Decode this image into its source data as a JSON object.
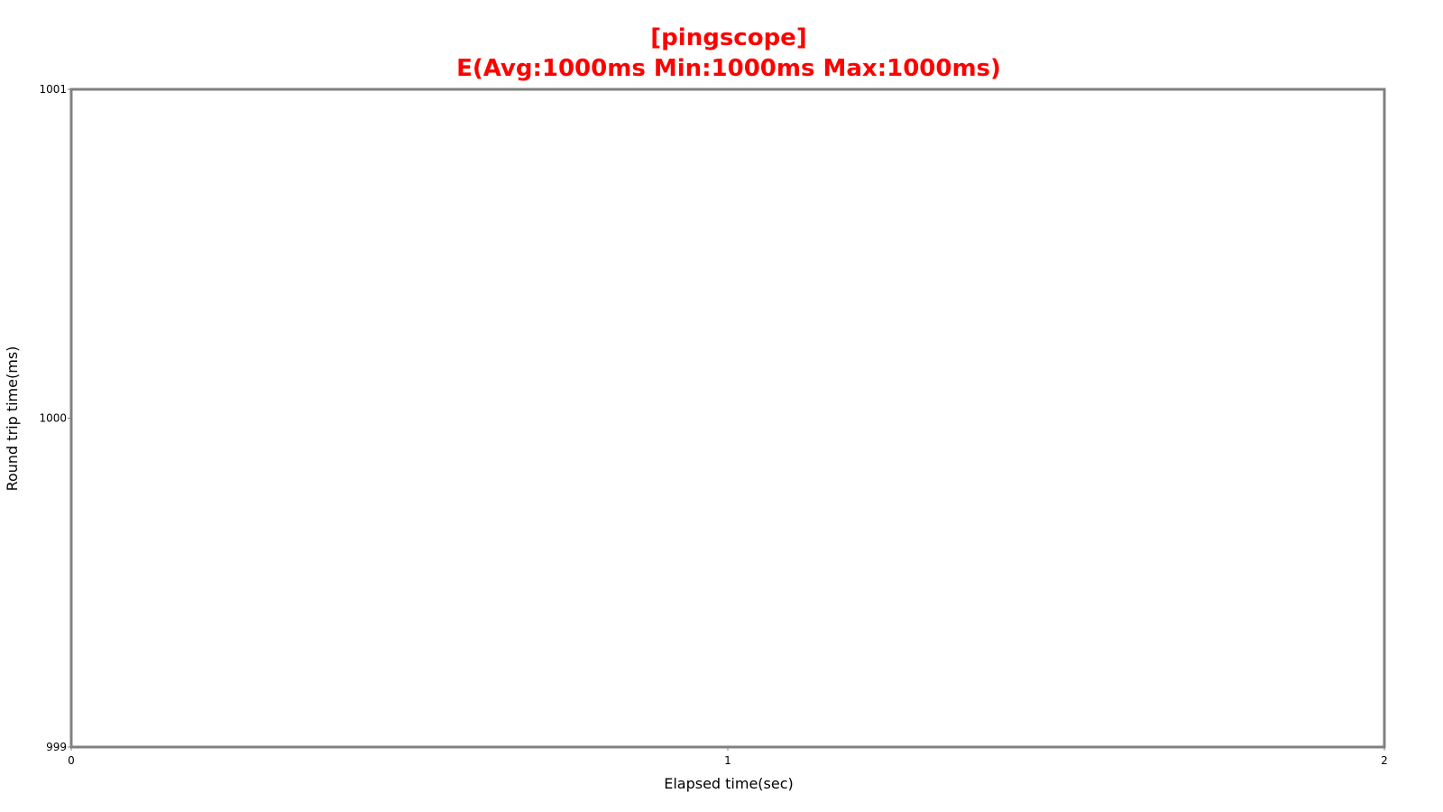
{
  "chart_data": {
    "type": "line",
    "title": "[pingscope]",
    "subtitle": "E(Avg:1000ms Min:1000ms Max:1000ms)",
    "xlabel": "Elapsed time(sec)",
    "ylabel": "Round trip time(ms)",
    "xlim": [
      0,
      2
    ],
    "ylim": [
      999,
      1001
    ],
    "x_ticks": [
      "0",
      "1",
      "2"
    ],
    "y_ticks": [
      "999",
      "1000",
      "1001"
    ],
    "x_tick_values": [
      0,
      1,
      2
    ],
    "y_tick_values": [
      999,
      1000,
      1001
    ],
    "grid": true,
    "legend": "none",
    "colors": {
      "title": "#ff0000",
      "frame": "#808080",
      "grid": "#b0b0b0",
      "series": "#ff0000"
    },
    "series": [
      {
        "x": [],
        "y": []
      }
    ]
  }
}
